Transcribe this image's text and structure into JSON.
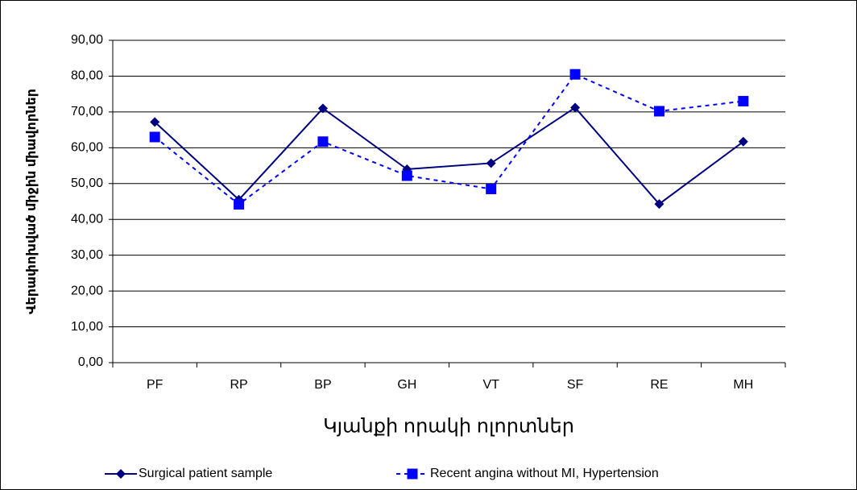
{
  "chart_data": {
    "type": "line",
    "x_label": "Կյանքի որակի ոլորտներ",
    "y_label": "Վերափոխված միջին միավորներ",
    "categories": [
      "PF",
      "RP",
      "BP",
      "GH",
      "VT",
      "SF",
      "RE",
      "MH"
    ],
    "series": [
      {
        "name": "Surgical patient sample",
        "color": "#000080",
        "values": [
          67.2,
          45.5,
          71.0,
          54.0,
          55.7,
          71.2,
          44.3,
          61.7
        ]
      },
      {
        "name": "Recent angina without MI, Hypertension",
        "color": "#0000ff",
        "values": [
          63.0,
          44.2,
          61.7,
          52.2,
          48.5,
          80.5,
          70.2,
          73.0
        ]
      }
    ],
    "ylim": [
      0,
      90
    ],
    "yticks": [
      {
        "value": 0,
        "label": "0,00"
      },
      {
        "value": 10,
        "label": "10,00"
      },
      {
        "value": 20,
        "label": "20,00"
      },
      {
        "value": 30,
        "label": "30,00"
      },
      {
        "value": 40,
        "label": "40,00"
      },
      {
        "value": 50,
        "label": "50,00"
      },
      {
        "value": 60,
        "label": "60,00"
      },
      {
        "value": 70,
        "label": "70,00"
      },
      {
        "value": 80,
        "label": "80,00"
      },
      {
        "value": 90,
        "label": "90,00"
      }
    ],
    "grid": true
  }
}
